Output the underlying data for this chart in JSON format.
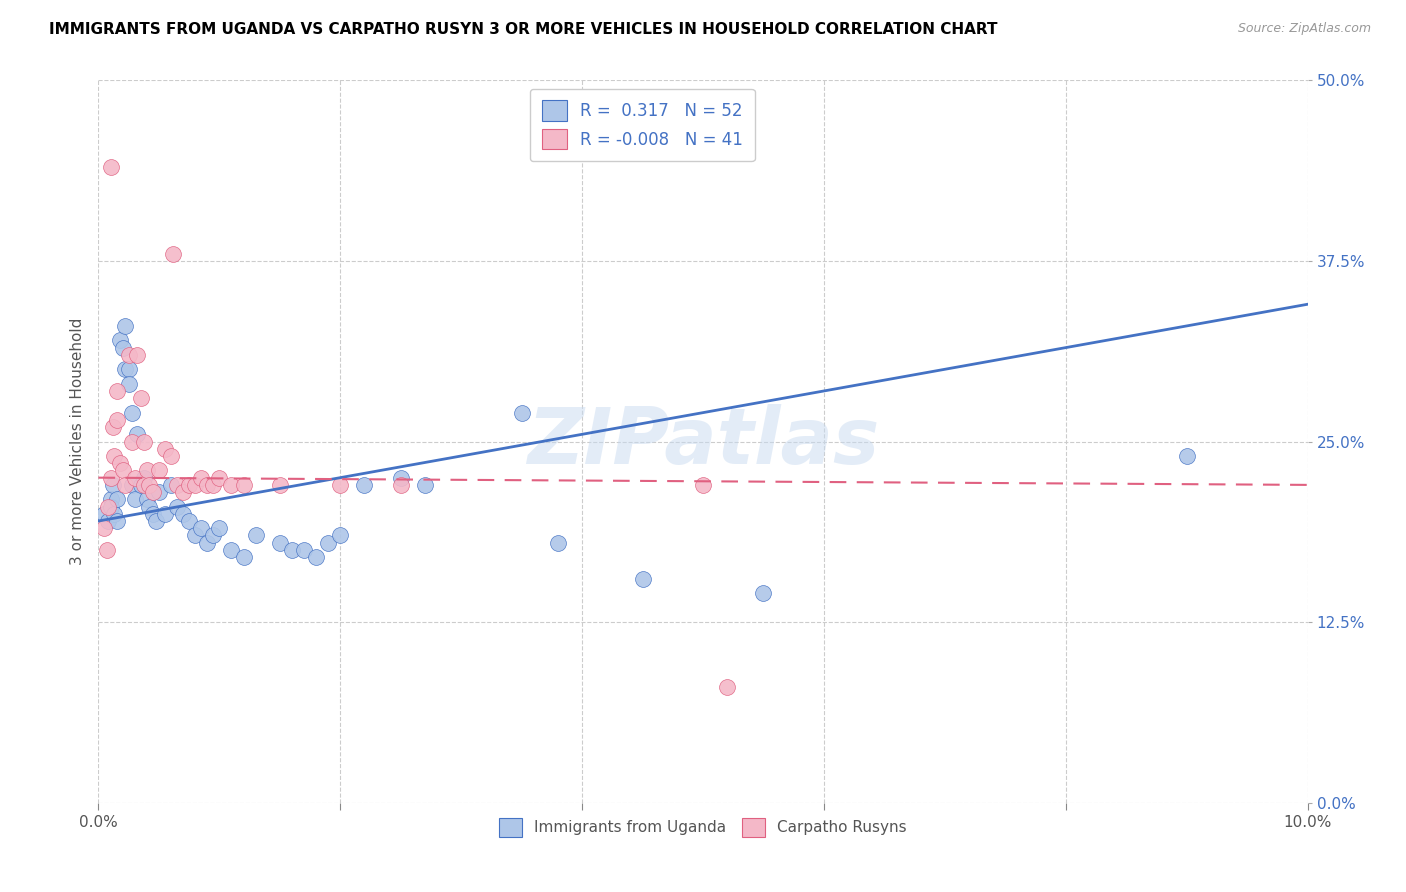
{
  "title": "IMMIGRANTS FROM UGANDA VS CARPATHO RUSYN 3 OR MORE VEHICLES IN HOUSEHOLD CORRELATION CHART",
  "source": "Source: ZipAtlas.com",
  "ylabel_label": "3 or more Vehicles in Household",
  "legend_labels": [
    "Immigrants from Uganda",
    "Carpatho Rusyns"
  ],
  "r_uganda": 0.317,
  "n_uganda": 52,
  "r_rusyn": -0.008,
  "n_rusyn": 41,
  "xlim": [
    0.0,
    10.0
  ],
  "ylim": [
    0.0,
    50.0
  ],
  "watermark": "ZIPatlas",
  "blue_color": "#aec6e8",
  "pink_color": "#f4b8c8",
  "blue_line_color": "#4472c4",
  "pink_line_color": "#e06080",
  "uganda_points": [
    [
      0.05,
      20.0
    ],
    [
      0.08,
      19.5
    ],
    [
      0.1,
      21.0
    ],
    [
      0.1,
      20.5
    ],
    [
      0.12,
      22.0
    ],
    [
      0.13,
      20.0
    ],
    [
      0.15,
      19.5
    ],
    [
      0.15,
      21.0
    ],
    [
      0.18,
      32.0
    ],
    [
      0.2,
      31.5
    ],
    [
      0.22,
      33.0
    ],
    [
      0.22,
      30.0
    ],
    [
      0.25,
      30.0
    ],
    [
      0.25,
      29.0
    ],
    [
      0.28,
      27.0
    ],
    [
      0.28,
      22.0
    ],
    [
      0.3,
      21.0
    ],
    [
      0.32,
      25.5
    ],
    [
      0.35,
      22.0
    ],
    [
      0.38,
      22.5
    ],
    [
      0.4,
      21.0
    ],
    [
      0.42,
      20.5
    ],
    [
      0.45,
      20.0
    ],
    [
      0.48,
      19.5
    ],
    [
      0.5,
      21.5
    ],
    [
      0.55,
      20.0
    ],
    [
      0.6,
      22.0
    ],
    [
      0.65,
      20.5
    ],
    [
      0.7,
      20.0
    ],
    [
      0.75,
      19.5
    ],
    [
      0.8,
      18.5
    ],
    [
      0.85,
      19.0
    ],
    [
      0.9,
      18.0
    ],
    [
      0.95,
      18.5
    ],
    [
      1.0,
      19.0
    ],
    [
      1.1,
      17.5
    ],
    [
      1.2,
      17.0
    ],
    [
      1.3,
      18.5
    ],
    [
      1.5,
      18.0
    ],
    [
      1.6,
      17.5
    ],
    [
      1.7,
      17.5
    ],
    [
      1.8,
      17.0
    ],
    [
      1.9,
      18.0
    ],
    [
      2.0,
      18.5
    ],
    [
      2.2,
      22.0
    ],
    [
      2.5,
      22.5
    ],
    [
      2.7,
      22.0
    ],
    [
      3.5,
      27.0
    ],
    [
      3.8,
      18.0
    ],
    [
      4.5,
      15.5
    ],
    [
      5.5,
      14.5
    ],
    [
      9.0,
      24.0
    ]
  ],
  "rusyn_points": [
    [
      0.05,
      19.0
    ],
    [
      0.07,
      17.5
    ],
    [
      0.08,
      20.5
    ],
    [
      0.1,
      22.5
    ],
    [
      0.1,
      44.0
    ],
    [
      0.12,
      26.0
    ],
    [
      0.13,
      24.0
    ],
    [
      0.15,
      28.5
    ],
    [
      0.15,
      26.5
    ],
    [
      0.18,
      23.5
    ],
    [
      0.2,
      23.0
    ],
    [
      0.22,
      22.0
    ],
    [
      0.25,
      31.0
    ],
    [
      0.28,
      25.0
    ],
    [
      0.3,
      22.5
    ],
    [
      0.32,
      31.0
    ],
    [
      0.35,
      28.0
    ],
    [
      0.38,
      25.0
    ],
    [
      0.38,
      22.0
    ],
    [
      0.4,
      23.0
    ],
    [
      0.42,
      22.0
    ],
    [
      0.45,
      21.5
    ],
    [
      0.5,
      23.0
    ],
    [
      0.55,
      24.5
    ],
    [
      0.6,
      24.0
    ],
    [
      0.62,
      38.0
    ],
    [
      0.65,
      22.0
    ],
    [
      0.7,
      21.5
    ],
    [
      0.75,
      22.0
    ],
    [
      0.8,
      22.0
    ],
    [
      0.85,
      22.5
    ],
    [
      0.9,
      22.0
    ],
    [
      0.95,
      22.0
    ],
    [
      1.0,
      22.5
    ],
    [
      1.1,
      22.0
    ],
    [
      1.2,
      22.0
    ],
    [
      1.5,
      22.0
    ],
    [
      2.0,
      22.0
    ],
    [
      2.5,
      22.0
    ],
    [
      5.0,
      22.0
    ],
    [
      5.2,
      8.0
    ]
  ],
  "uganda_line": [
    0.0,
    19.5,
    10.0,
    34.5
  ],
  "rusyn_line": [
    0.0,
    22.5,
    10.0,
    22.0
  ],
  "x_ticks": [
    0,
    2,
    4,
    6,
    8,
    10
  ],
  "y_ticks": [
    0.0,
    12.5,
    25.0,
    37.5,
    50.0
  ]
}
